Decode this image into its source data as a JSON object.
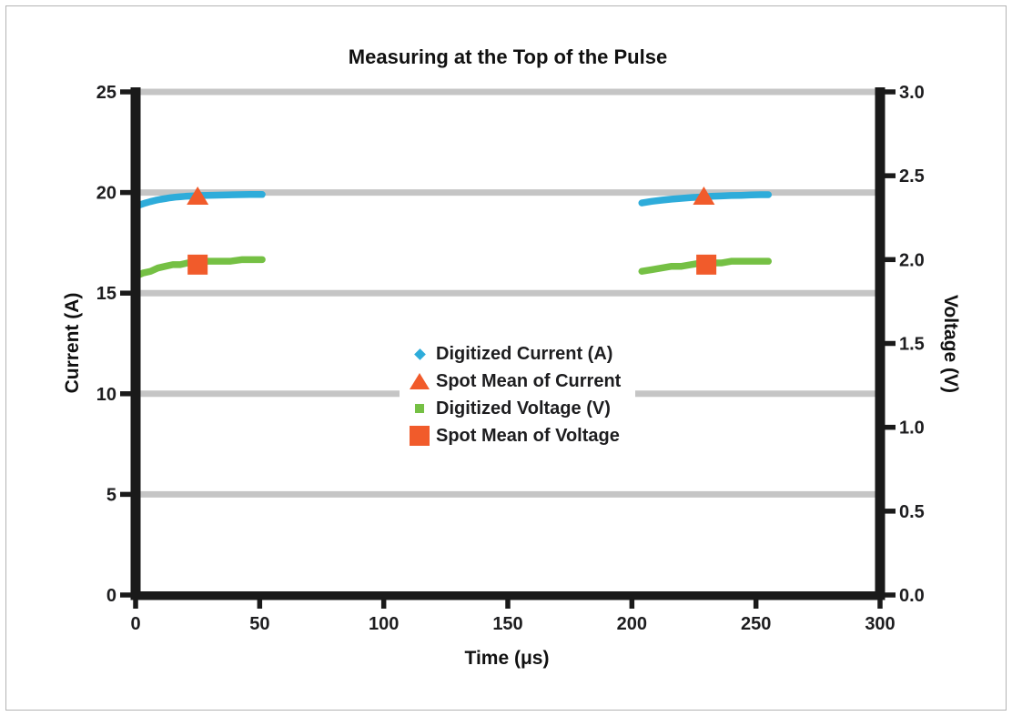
{
  "figure": {
    "background": "#FFFFFF",
    "border_color": "#B3B3B3"
  },
  "chart_data": {
    "type": "scatter",
    "title": "Measuring at the Top of the Pulse",
    "xlabel": "Time (μs)",
    "ylabel_left": "Current (A)",
    "ylabel_right": "Voltage (V)",
    "xlim": [
      0,
      300
    ],
    "x_tick_labels": [
      "0",
      "50",
      "100",
      "150",
      "200",
      "250",
      "300"
    ],
    "ylim_left": [
      0,
      25
    ],
    "y_left_tick_labels": [
      "0",
      "5",
      "10",
      "15",
      "20",
      "25"
    ],
    "ylim_right": [
      0.0,
      3.0
    ],
    "y_right_tick_labels": [
      "0.0",
      "0.5",
      "1.0",
      "1.5",
      "2.0",
      "2.5",
      "3.0"
    ],
    "grid": "horizontal",
    "gridlines_at_left_values": [
      5,
      10,
      15,
      20,
      25
    ],
    "legend_position": "center",
    "colors": {
      "current": "#2EACDA",
      "voltage": "#75C044",
      "spot_mean": "#F15B2B",
      "gridline": "#C5C5C5",
      "axis": "#1A1A1A"
    },
    "series": [
      {
        "name": "Digitized Current (A)",
        "axis": "left",
        "marker": "diamond-dots",
        "color": "#2EACDA",
        "segments": [
          [
            [
              0,
              19.3
            ],
            [
              2,
              19.4
            ],
            [
              4,
              19.48
            ],
            [
              6,
              19.55
            ],
            [
              8,
              19.61
            ],
            [
              10,
              19.66
            ],
            [
              12,
              19.7
            ],
            [
              14,
              19.74
            ],
            [
              16,
              19.77
            ],
            [
              18,
              19.79
            ],
            [
              20,
              19.81
            ],
            [
              23,
              19.83
            ],
            [
              26,
              19.85
            ],
            [
              29,
              19.86
            ],
            [
              33,
              19.87
            ],
            [
              37,
              19.88
            ],
            [
              41,
              19.89
            ],
            [
              46,
              19.9
            ],
            [
              51,
              19.9
            ]
          ],
          [
            [
              204,
              19.48
            ],
            [
              208,
              19.56
            ],
            [
              212,
              19.62
            ],
            [
              216,
              19.67
            ],
            [
              220,
              19.71
            ],
            [
              224,
              19.75
            ],
            [
              228,
              19.78
            ],
            [
              232,
              19.81
            ],
            [
              236,
              19.83
            ],
            [
              240,
              19.85
            ],
            [
              244,
              19.86
            ],
            [
              248,
              19.88
            ],
            [
              252,
              19.89
            ],
            [
              255,
              19.89
            ]
          ]
        ]
      },
      {
        "name": "Spot Mean of Current",
        "axis": "left",
        "marker": "triangle",
        "color": "#F15B2B",
        "points": [
          [
            25,
            19.8
          ],
          [
            229,
            19.8
          ]
        ]
      },
      {
        "name": "Digitized Voltage (V)",
        "axis": "right",
        "marker": "square-dots",
        "color": "#75C044",
        "segments": [
          [
            [
              0,
              1.9
            ],
            [
              3,
              1.92
            ],
            [
              6,
              1.93
            ],
            [
              9,
              1.95
            ],
            [
              12,
              1.96
            ],
            [
              15,
              1.97
            ],
            [
              18,
              1.97
            ],
            [
              21,
              1.98
            ],
            [
              25,
              1.98
            ],
            [
              29,
              1.99
            ],
            [
              33,
              1.99
            ],
            [
              38,
              1.99
            ],
            [
              43,
              2.0
            ],
            [
              47,
              2.0
            ],
            [
              51,
              2.0
            ]
          ],
          [
            [
              204,
              1.93
            ],
            [
              208,
              1.94
            ],
            [
              212,
              1.95
            ],
            [
              216,
              1.96
            ],
            [
              220,
              1.96
            ],
            [
              224,
              1.97
            ],
            [
              228,
              1.98
            ],
            [
              232,
              1.98
            ],
            [
              236,
              1.98
            ],
            [
              240,
              1.99
            ],
            [
              245,
              1.99
            ],
            [
              250,
              1.99
            ],
            [
              255,
              1.99
            ]
          ]
        ]
      },
      {
        "name": "Spot Mean of Voltage",
        "axis": "right",
        "marker": "square",
        "color": "#F15B2B",
        "points": [
          [
            25,
            1.97
          ],
          [
            230,
            1.97
          ]
        ]
      }
    ]
  },
  "legend": {
    "items": [
      {
        "label": "Digitized Current (A)",
        "marker": "diamond",
        "color": "#2EACDA"
      },
      {
        "label": "Spot Mean of Current",
        "marker": "triangle",
        "color": "#F15B2B"
      },
      {
        "label": "Digitized Voltage (V)",
        "marker": "square-small",
        "color": "#75C044"
      },
      {
        "label": "Spot Mean of Voltage",
        "marker": "square-big",
        "color": "#F15B2B"
      }
    ]
  }
}
